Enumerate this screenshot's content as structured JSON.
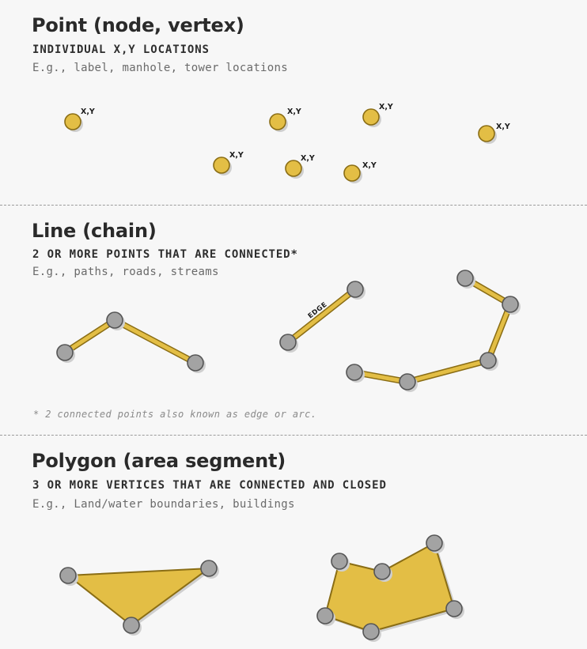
{
  "point": {
    "title": "Point (node, vertex)",
    "subtitle": "INDIVIDUAL X,Y LOCATIONS",
    "example": "E.g., label, manhole, tower locations",
    "point_label": "X,Y"
  },
  "line": {
    "title": "Line (chain)",
    "subtitle": "2 OR MORE POINTS THAT ARE CONNECTED*",
    "example": "E.g., paths, roads, streams",
    "edge_label": "EDGE",
    "note": "* 2 connected points also known as edge or arc."
  },
  "polygon": {
    "title": "Polygon (area segment)",
    "subtitle": "3 OR MORE VERTICES THAT ARE CONNECTED AND CLOSED",
    "example": "E.g., Land/water boundaries, buildings"
  },
  "colors": {
    "background": "#f7f7f7",
    "point_fill": "#e3be45",
    "point_stroke": "#8a6d14",
    "vertex_fill": "#a3a3a3",
    "vertex_stroke": "#555555",
    "line_fill": "#e3be45",
    "polygon_fill": "#e3be45",
    "polygon_stroke": "#8a6d14",
    "shadow": "#cfcfcf",
    "divider": "#9c9c9c"
  }
}
